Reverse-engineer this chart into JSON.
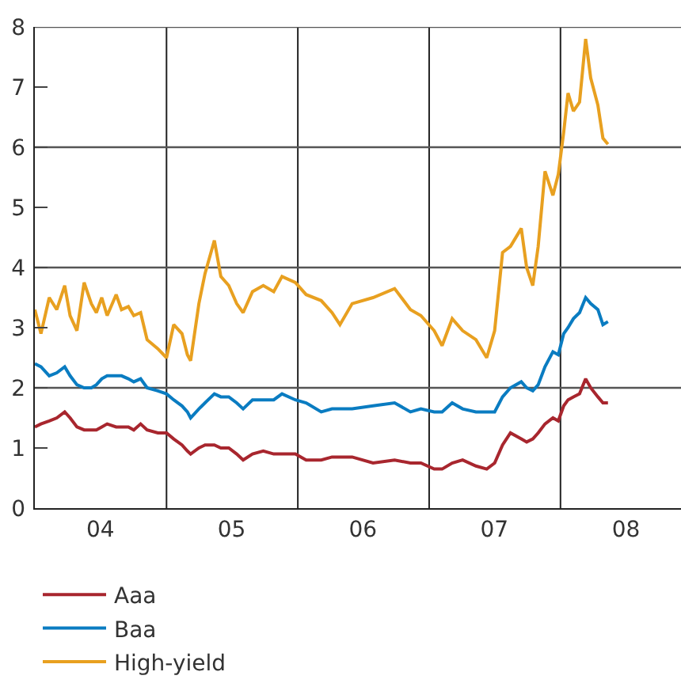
{
  "chart_data": {
    "type": "line",
    "x": [
      "2004-01-01",
      "2004-01-18",
      "2004-02-10",
      "2004-03-02",
      "2004-03-24",
      "2004-04-08",
      "2004-04-27",
      "2004-05-17",
      "2004-06-06",
      "2004-06-20",
      "2004-07-05",
      "2004-07-20",
      "2004-08-14",
      "2004-08-29",
      "2004-09-17",
      "2004-10-02",
      "2004-10-21",
      "2004-11-08",
      "2004-12-08",
      "2005-01-01",
      "2005-01-21",
      "2005-02-13",
      "2005-02-28",
      "2005-03-09",
      "2005-04-01",
      "2005-04-18",
      "2005-05-14",
      "2005-06-01",
      "2005-06-23",
      "2005-07-15",
      "2005-08-02",
      "2005-08-28",
      "2005-09-27",
      "2005-10-26",
      "2005-11-18",
      "2005-12-25",
      "2006-01-24",
      "2006-03-07",
      "2006-04-06",
      "2006-04-28",
      "2006-06-01",
      "2006-07-29",
      "2006-09-27",
      "2006-11-10",
      "2006-12-09",
      "2007-01-15",
      "2007-02-06",
      "2007-03-06",
      "2007-04-04",
      "2007-05-11",
      "2007-06-10",
      "2007-07-02",
      "2007-07-24",
      "2007-08-15",
      "2007-09-14",
      "2007-09-29",
      "2007-10-16",
      "2007-10-31",
      "2007-11-19",
      "2007-12-11",
      "2007-12-26",
      "2008-01-10",
      "2008-01-22",
      "2008-02-06",
      "2008-02-23",
      "2008-03-11",
      "2008-03-25",
      "2008-04-14",
      "2008-04-28",
      "2008-05-12"
    ],
    "series": [
      {
        "name": "Aaa",
        "color": "#a8262e",
        "values": [
          1.35,
          1.4,
          1.45,
          1.5,
          1.6,
          1.5,
          1.35,
          1.3,
          1.3,
          1.3,
          1.35,
          1.4,
          1.35,
          1.35,
          1.35,
          1.3,
          1.4,
          1.3,
          1.25,
          1.25,
          1.15,
          1.05,
          0.95,
          0.9,
          1.0,
          1.05,
          1.05,
          1.0,
          1.0,
          0.9,
          0.8,
          0.9,
          0.95,
          0.9,
          0.9,
          0.9,
          0.8,
          0.8,
          0.85,
          0.85,
          0.85,
          0.75,
          0.8,
          0.75,
          0.75,
          0.65,
          0.65,
          0.75,
          0.8,
          0.7,
          0.65,
          0.75,
          1.05,
          1.25,
          1.15,
          1.1,
          1.15,
          1.25,
          1.4,
          1.5,
          1.45,
          1.7,
          1.8,
          1.85,
          1.9,
          2.15,
          2.0,
          1.85,
          1.75,
          1.75
        ]
      },
      {
        "name": "Baa",
        "color": "#0a7cc1",
        "values": [
          2.4,
          2.35,
          2.2,
          2.25,
          2.35,
          2.2,
          2.05,
          2.0,
          2.0,
          2.05,
          2.15,
          2.2,
          2.2,
          2.2,
          2.15,
          2.1,
          2.15,
          2.0,
          1.95,
          1.9,
          1.8,
          1.7,
          1.6,
          1.5,
          1.65,
          1.75,
          1.9,
          1.85,
          1.85,
          1.75,
          1.65,
          1.8,
          1.8,
          1.8,
          1.9,
          1.8,
          1.75,
          1.6,
          1.65,
          1.65,
          1.65,
          1.7,
          1.75,
          1.6,
          1.65,
          1.6,
          1.6,
          1.75,
          1.65,
          1.6,
          1.6,
          1.6,
          1.85,
          2.0,
          2.1,
          2.0,
          1.95,
          2.05,
          2.35,
          2.6,
          2.55,
          2.9,
          3.0,
          3.15,
          3.25,
          3.5,
          3.4,
          3.3,
          3.05,
          3.1
        ]
      },
      {
        "name": "High-yield",
        "color": "#e8a020",
        "values": [
          3.3,
          2.9,
          3.5,
          3.3,
          3.7,
          3.2,
          2.95,
          3.75,
          3.4,
          3.25,
          3.5,
          3.2,
          3.55,
          3.3,
          3.35,
          3.2,
          3.25,
          2.8,
          2.65,
          2.5,
          3.05,
          2.9,
          2.55,
          2.45,
          3.4,
          3.9,
          4.45,
          3.85,
          3.7,
          3.4,
          3.25,
          3.6,
          3.7,
          3.6,
          3.85,
          3.75,
          3.55,
          3.45,
          3.25,
          3.05,
          3.4,
          3.5,
          3.65,
          3.3,
          3.2,
          2.95,
          2.7,
          3.15,
          2.95,
          2.8,
          2.5,
          2.95,
          4.25,
          4.35,
          4.65,
          4.0,
          3.7,
          4.35,
          5.6,
          5.2,
          5.55,
          6.25,
          6.9,
          6.6,
          6.75,
          7.8,
          7.15,
          6.7,
          6.15,
          6.05
        ]
      }
    ],
    "xlim": [
      "2004-01-01",
      "2008-12-01"
    ],
    "xticks": [
      {
        "value": "2004-07-01",
        "label": "04"
      },
      {
        "value": "2005-01-01",
        "label": null
      },
      {
        "value": "2005-07-01",
        "label": "05"
      },
      {
        "value": "2006-01-01",
        "label": null
      },
      {
        "value": "2006-07-01",
        "label": "06"
      },
      {
        "value": "2007-01-01",
        "label": null
      },
      {
        "value": "2007-07-01",
        "label": "07"
      },
      {
        "value": "2008-01-01",
        "label": null
      },
      {
        "value": "2008-07-01",
        "label": "08"
      }
    ],
    "ylim": [
      0,
      8
    ],
    "yticks": [
      0,
      1,
      2,
      3,
      4,
      5,
      6,
      7,
      8
    ],
    "grid": true,
    "legend": "bottom left"
  }
}
